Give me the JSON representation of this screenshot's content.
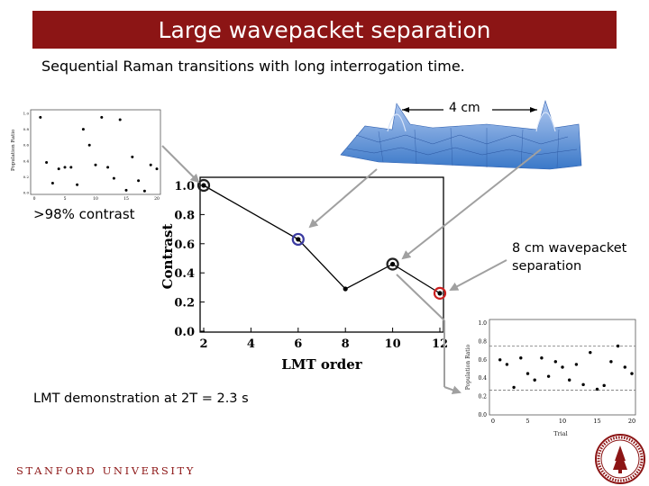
{
  "slide": {
    "title": "Large wavepacket separation",
    "subtitle": "Sequential Raman transitions with long interrogation time.",
    "contrast_note": ">98% contrast",
    "separation_note": "8 cm wavepacket\nseparation",
    "demo_note": "LMT demonstration at 2T = 2.3 s",
    "distance_label": "4 cm",
    "footer": "STANFORD UNIVERSITY",
    "colors": {
      "title_bg": "#8c1515",
      "footer": "#8c1515",
      "arrow": "#a0a0a0"
    }
  },
  "chart_data": [
    {
      "type": "line",
      "xlabel": "LMT order",
      "ylabel": "Contrast",
      "x": [
        2,
        6,
        8,
        10,
        12
      ],
      "y": [
        1.0,
        0.63,
        0.29,
        0.46,
        0.26
      ],
      "highlighted": [
        {
          "x": 2,
          "color": "#222222"
        },
        {
          "x": 6,
          "color": "#3a3aa0"
        },
        {
          "x": 10,
          "color": "#222222"
        },
        {
          "x": 12,
          "color": "#cc2020"
        }
      ],
      "xlim": [
        2,
        12
      ],
      "ylim": [
        0,
        1.0
      ],
      "xticks": [
        "2",
        "4",
        "6",
        "8",
        "10",
        "12"
      ],
      "yticks": [
        "0.0",
        "0.2",
        "0.4",
        "0.6",
        "0.8",
        "1.0"
      ]
    },
    {
      "type": "scatter",
      "xlabel": "Trial",
      "ylabel": "Population Ratio",
      "x": [
        1,
        2,
        3,
        4,
        5,
        6,
        7,
        8,
        9,
        10,
        11,
        12,
        13,
        14,
        15,
        16,
        17,
        18,
        19,
        20
      ],
      "y": [
        0.6,
        0.55,
        0.3,
        0.62,
        0.45,
        0.38,
        0.62,
        0.42,
        0.58,
        0.52,
        0.38,
        0.55,
        0.33,
        0.68,
        0.28,
        0.32,
        0.58,
        0.75,
        0.52,
        0.45
      ],
      "xlim": [
        0,
        20
      ],
      "ylim": [
        0,
        1.0
      ],
      "xticks": [
        "0",
        "5",
        "10",
        "15",
        "20"
      ],
      "yticks": [
        "0.0",
        "0.2",
        "0.4",
        "0.6",
        "0.8",
        "1.0"
      ],
      "reference_lines": [
        0.75,
        0.27
      ]
    },
    {
      "type": "scatter",
      "xlabel": "",
      "ylabel": "Population Ratio",
      "x": [
        1,
        2,
        3,
        4,
        5,
        6,
        7,
        8,
        9,
        10,
        11,
        12,
        13,
        14,
        15,
        16,
        17,
        18,
        19,
        20
      ],
      "y": [
        0.95,
        0.38,
        0.12,
        0.3,
        0.32,
        0.32,
        0.1,
        0.8,
        0.6,
        0.35,
        0.95,
        0.32,
        0.18,
        0.92,
        0.03,
        0.45,
        0.15,
        0.02,
        0.35,
        0.3
      ],
      "xlim": [
        0,
        20
      ],
      "ylim": [
        0,
        1.0
      ],
      "xticks": [
        "0",
        "5",
        "10",
        "15",
        "20"
      ],
      "yticks": [
        "0.0",
        "0.2",
        "0.4",
        "0.6",
        "0.8",
        "1.0"
      ]
    }
  ]
}
